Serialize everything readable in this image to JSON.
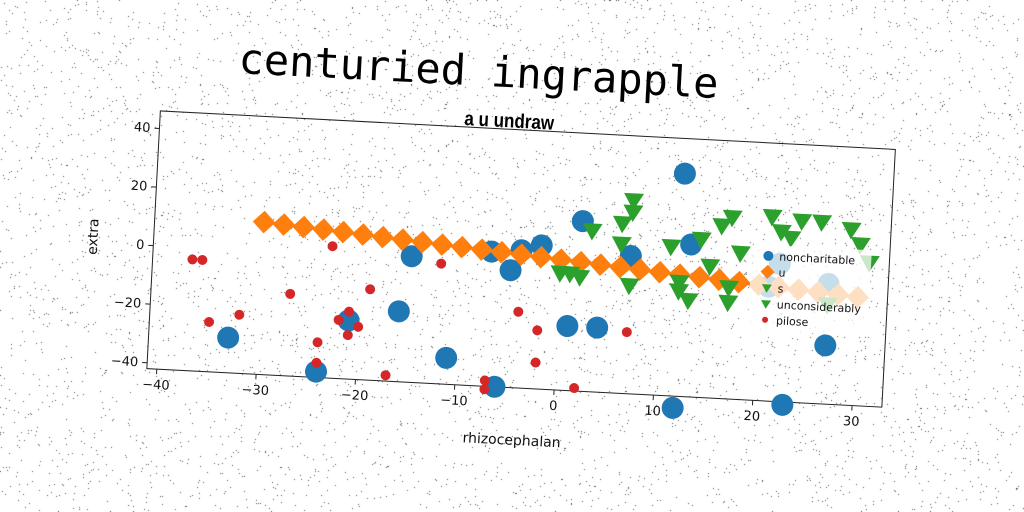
{
  "chart_data": {
    "type": "scatter",
    "title": "centuried ingrapple",
    "subtitle": "a u undraw",
    "xlabel": "rhizocephalan",
    "ylabel": "extra",
    "xlim": [
      -41,
      33
    ],
    "ylim": [
      -42,
      46
    ],
    "xticks": [
      -40,
      -30,
      -20,
      -10,
      0,
      10,
      20,
      30
    ],
    "yticks": [
      40,
      20,
      0,
      -20,
      -40
    ],
    "grid": false,
    "legend_position": "right",
    "series": [
      {
        "name": "noncharitable",
        "marker": "circle",
        "color": "#1f77b4",
        "points": [
          [
            12,
            34
          ],
          [
            -33,
            -30
          ],
          [
            -24,
            -40
          ],
          [
            -16,
            -18
          ],
          [
            -21,
            -22
          ],
          [
            -15,
            1
          ],
          [
            -11,
            -33
          ],
          [
            -7,
            4
          ],
          [
            -6,
            -42
          ],
          [
            -5,
            -2
          ],
          [
            -4,
            5
          ],
          [
            -2,
            7
          ],
          [
            1,
            -20
          ],
          [
            4,
            -20
          ],
          [
            2,
            16
          ],
          [
            7,
            5
          ],
          [
            12,
            -46
          ],
          [
            13,
            10
          ],
          [
            21,
            -3
          ],
          [
            22,
            5
          ],
          [
            27,
            -1
          ],
          [
            27,
            -22
          ],
          [
            23,
            -43
          ]
        ]
      },
      {
        "name": "u",
        "marker": "square",
        "color": "#ff7f0e",
        "points": [
          [
            -30,
            10
          ],
          [
            -28,
            9.5
          ],
          [
            -26,
            9
          ],
          [
            -24,
            8.5
          ],
          [
            -22,
            8
          ],
          [
            -20,
            7.5
          ],
          [
            -18,
            7
          ],
          [
            -16,
            6.5
          ],
          [
            -14,
            6
          ],
          [
            -12,
            5.5
          ],
          [
            -10,
            5
          ],
          [
            -8,
            4.5
          ],
          [
            -6,
            4
          ],
          [
            -4,
            3.5
          ],
          [
            -2,
            3
          ],
          [
            0,
            2.5
          ],
          [
            2,
            2
          ],
          [
            4,
            1.5
          ],
          [
            6,
            1
          ],
          [
            8,
            0.5
          ],
          [
            10,
            0
          ],
          [
            12,
            -0.5
          ],
          [
            14,
            -1
          ],
          [
            16,
            -1.5
          ],
          [
            18,
            -2
          ],
          [
            20,
            -2.5
          ],
          [
            22,
            -3
          ],
          [
            24,
            -3.5
          ],
          [
            26,
            -4
          ],
          [
            28,
            -4.5
          ],
          [
            30,
            -5
          ]
        ]
      },
      {
        "name": "s",
        "marker": "triangle-down",
        "color": "#2ca02c",
        "points": [
          [
            7,
            24
          ],
          [
            7,
            20
          ],
          [
            6,
            16
          ],
          [
            3,
            13
          ],
          [
            6,
            9
          ],
          [
            0,
            -2
          ],
          [
            1,
            -2
          ],
          [
            2,
            -3
          ],
          [
            7,
            -5
          ],
          [
            12,
            -3
          ],
          [
            11,
            9
          ],
          [
            12,
            -6
          ],
          [
            13,
            -9
          ],
          [
            16,
            17
          ],
          [
            17,
            20
          ],
          [
            17,
            -4
          ],
          [
            17,
            -9
          ],
          [
            18,
            8
          ],
          [
            21,
            21
          ],
          [
            22,
            16
          ],
          [
            23,
            14
          ],
          [
            24,
            20
          ],
          [
            26,
            20
          ],
          [
            27,
            -8
          ],
          [
            29,
            18
          ],
          [
            30,
            13
          ],
          [
            31,
            7
          ],
          [
            14,
            12
          ],
          [
            15,
            3
          ]
        ]
      },
      {
        "name": "unconsiderably",
        "marker": "triangle-down",
        "color": "#2ca02c",
        "points": []
      },
      {
        "name": "pilose",
        "marker": "circle",
        "color": "#d62728",
        "points": [
          [
            -37,
            -4
          ],
          [
            -36,
            -4
          ],
          [
            -35,
            -25
          ],
          [
            -32,
            -22
          ],
          [
            -27,
            -14
          ],
          [
            -24,
            -30
          ],
          [
            -24,
            -37
          ],
          [
            -23,
            3
          ],
          [
            -22,
            -22
          ],
          [
            -21,
            -27
          ],
          [
            -21,
            -19
          ],
          [
            -20,
            -24
          ],
          [
            -19,
            -11
          ],
          [
            -17,
            -40
          ],
          [
            -12,
            -1
          ],
          [
            -7,
            -40
          ],
          [
            -7,
            -43
          ],
          [
            -4,
            -16
          ],
          [
            -2,
            -22
          ],
          [
            -2,
            -33
          ],
          [
            2,
            -41
          ],
          [
            7,
            -21
          ]
        ]
      }
    ]
  }
}
